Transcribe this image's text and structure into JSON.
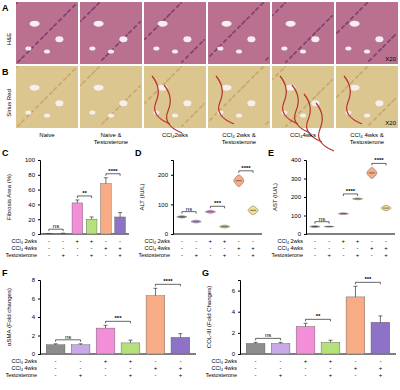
{
  "figure": {
    "rows": [
      {
        "letter": "A",
        "stain": "H&E",
        "magnification": "X20"
      },
      {
        "letter": "B",
        "stain": "Sirius Red",
        "magnification": "X20"
      }
    ],
    "columns": [
      "Naive",
      "Naive & Testosterone",
      "CCl₄2wks",
      "CCl₄ 2wks & Testosterone",
      "CCl₄4wks",
      "CCl₄ 4wks & Testosterone"
    ]
  },
  "chart_data": [
    {
      "type": "bar",
      "title": "C",
      "y_label": "Fibrosis Area (%)",
      "values": [
        0.5,
        0.8,
        42,
        20,
        68,
        23
      ],
      "errors": [
        0.2,
        0.3,
        4,
        3,
        8,
        6
      ],
      "colors": [
        "#8c8c8c",
        "#c9a9e8",
        "#f28fd8",
        "#b5e07a",
        "#f7ac86",
        "#8e72c8"
      ],
      "ylim": [
        0,
        100
      ],
      "yticks": [
        0,
        20,
        40,
        60,
        80,
        100
      ],
      "comparisons": [
        {
          "pair": [
            0,
            1
          ],
          "label": "ns"
        },
        {
          "pair": [
            2,
            3
          ],
          "label": "**"
        },
        {
          "pair": [
            4,
            5
          ],
          "label": "****"
        }
      ],
      "conditions": [
        {
          "label": "CCl₄ 2wks",
          "signs": [
            "-",
            "-",
            "+",
            "+",
            "-",
            "-"
          ]
        },
        {
          "label": "CCl₄ 4wks",
          "signs": [
            "-",
            "-",
            "-",
            "-",
            "+",
            "+"
          ]
        },
        {
          "label": "Testosterone",
          "signs": [
            "-",
            "+",
            "-",
            "+",
            "-",
            "+"
          ]
        }
      ]
    },
    {
      "type": "violin",
      "title": "D",
      "y_label": "ALT (IU/L)",
      "values": [
        58,
        42,
        75,
        25,
        180,
        80
      ],
      "low": [
        54,
        37,
        70,
        20,
        160,
        65
      ],
      "high": [
        62,
        47,
        80,
        30,
        200,
        95
      ],
      "colors": [
        "#8c8c8c",
        "#c9a9e8",
        "#f28fd8",
        "#b5e07a",
        "#f7ac86",
        "#f3e08a"
      ],
      "ylim": [
        0,
        250
      ],
      "yticks": [
        0,
        100,
        200
      ],
      "comparisons": [
        {
          "pair": [
            0,
            1
          ],
          "label": "ns"
        },
        {
          "pair": [
            2,
            3
          ],
          "label": "***"
        },
        {
          "pair": [
            4,
            5
          ],
          "label": "****"
        }
      ],
      "conditions": [
        {
          "label": "CCl₄ 2wks",
          "signs": [
            "-",
            "-",
            "+",
            "+",
            "-",
            "-"
          ]
        },
        {
          "label": "CCl₄ 4wks",
          "signs": [
            "-",
            "-",
            "-",
            "-",
            "+",
            "+"
          ]
        },
        {
          "label": "Testosterone",
          "signs": [
            "-",
            "+",
            "-",
            "+",
            "-",
            "+"
          ]
        }
      ]
    },
    {
      "type": "violin",
      "title": "E",
      "y_label": "AST (IU/L)",
      "values": [
        40,
        40,
        110,
        190,
        330,
        140
      ],
      "low": [
        35,
        37,
        105,
        185,
        300,
        125
      ],
      "high": [
        45,
        43,
        115,
        195,
        360,
        155
      ],
      "colors": [
        "#8c8c8c",
        "#c9a9e8",
        "#f28fd8",
        "#b5e07a",
        "#f7ac86",
        "#f3e08a"
      ],
      "ylim": [
        0,
        400
      ],
      "yticks": [
        0,
        100,
        200,
        300,
        400
      ],
      "comparisons": [
        {
          "pair": [
            0,
            1
          ],
          "label": "ns"
        },
        {
          "pair": [
            2,
            3
          ],
          "label": "****"
        },
        {
          "pair": [
            4,
            5
          ],
          "label": "****"
        }
      ],
      "conditions": [
        {
          "label": "CCl₄ 2wks",
          "signs": [
            "-",
            "-",
            "+",
            "+",
            "-",
            "-"
          ]
        },
        {
          "label": "CCl₄ 4wks",
          "signs": [
            "-",
            "-",
            "-",
            "-",
            "+",
            "+"
          ]
        },
        {
          "label": "Testosterone",
          "signs": [
            "-",
            "+",
            "-",
            "+",
            "-",
            "+"
          ]
        }
      ]
    },
    {
      "type": "bar",
      "title": "F",
      "y_label": "αSMA (Fold changes)",
      "values": [
        1.0,
        1.0,
        2.8,
        1.2,
        6.3,
        1.8
      ],
      "errors": [
        0.1,
        0.1,
        0.3,
        0.3,
        0.8,
        0.4
      ],
      "colors": [
        "#8c8c8c",
        "#c9a9e8",
        "#f28fd8",
        "#b5e07a",
        "#f7ac86",
        "#8e72c8"
      ],
      "ylim": [
        0,
        8
      ],
      "yticks": [
        0,
        2,
        4,
        6,
        8
      ],
      "comparisons": [
        {
          "pair": [
            0,
            1
          ],
          "label": "ns"
        },
        {
          "pair": [
            2,
            3
          ],
          "label": "***"
        },
        {
          "pair": [
            4,
            5
          ],
          "label": "****"
        }
      ],
      "conditions": [
        {
          "label": "CCl₄ 2wks",
          "signs": [
            "-",
            "-",
            "+",
            "+",
            "-",
            "-"
          ]
        },
        {
          "label": "CCl₄ 4wks",
          "signs": [
            "-",
            "-",
            "-",
            "-",
            "+",
            "+"
          ]
        },
        {
          "label": "Testosterone",
          "signs": [
            "-",
            "+",
            "-",
            "+",
            "-",
            "+"
          ]
        }
      ]
    },
    {
      "type": "bar",
      "title": "G",
      "y_label": "COL-III (Fold Changes)",
      "values": [
        1.0,
        1.0,
        2.6,
        1.1,
        5.4,
        3.0
      ],
      "errors": [
        0.1,
        0.1,
        0.3,
        0.2,
        1.0,
        0.6
      ],
      "colors": [
        "#8c8c8c",
        "#c9a9e8",
        "#f28fd8",
        "#b5e07a",
        "#f7ac86",
        "#8e72c8"
      ],
      "ylim": [
        0,
        7
      ],
      "yticks": [
        0,
        2,
        4,
        6
      ],
      "comparisons": [
        {
          "pair": [
            0,
            1
          ],
          "label": "ns"
        },
        {
          "pair": [
            2,
            3
          ],
          "label": "**"
        },
        {
          "pair": [
            4,
            5
          ],
          "label": "***"
        }
      ],
      "conditions": [
        {
          "label": "CCl₄ 2wks",
          "signs": [
            "-",
            "-",
            "+",
            "+",
            "-",
            "-"
          ]
        },
        {
          "label": "CCl₄ 4wks",
          "signs": [
            "-",
            "-",
            "-",
            "-",
            "+",
            "+"
          ]
        },
        {
          "label": "Testosterone",
          "signs": [
            "-",
            "+",
            "-",
            "+",
            "-",
            "+"
          ]
        }
      ]
    }
  ]
}
